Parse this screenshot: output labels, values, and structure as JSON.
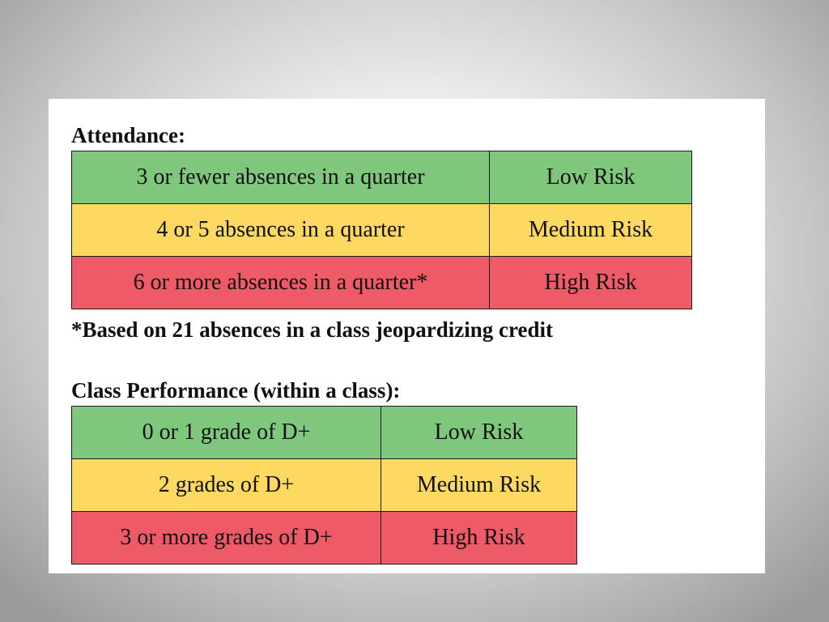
{
  "attendance": {
    "heading": "Attendance:",
    "rows": [
      {
        "criterion": "3 or fewer absences in a quarter",
        "risk": "Low Risk"
      },
      {
        "criterion": "4 or 5 absences in a quarter",
        "risk": "Medium Risk"
      },
      {
        "criterion": "6 or more absences in a quarter*",
        "risk": "High Risk"
      }
    ],
    "footnote": "*Based on 21 absences in a class jeopardizing credit"
  },
  "performance": {
    "heading": "Class Performance (within a class):",
    "rows": [
      {
        "criterion": "0 or 1 grade of  D+",
        "risk": "Low Risk"
      },
      {
        "criterion": "2 grades of D+",
        "risk": "Medium Risk"
      },
      {
        "criterion": "3 or more grades of  D+",
        "risk": "High Risk"
      }
    ]
  },
  "colors": {
    "low_risk": "#80c77e",
    "medium_risk": "#fdd961",
    "high_risk": "#ee5a68"
  }
}
